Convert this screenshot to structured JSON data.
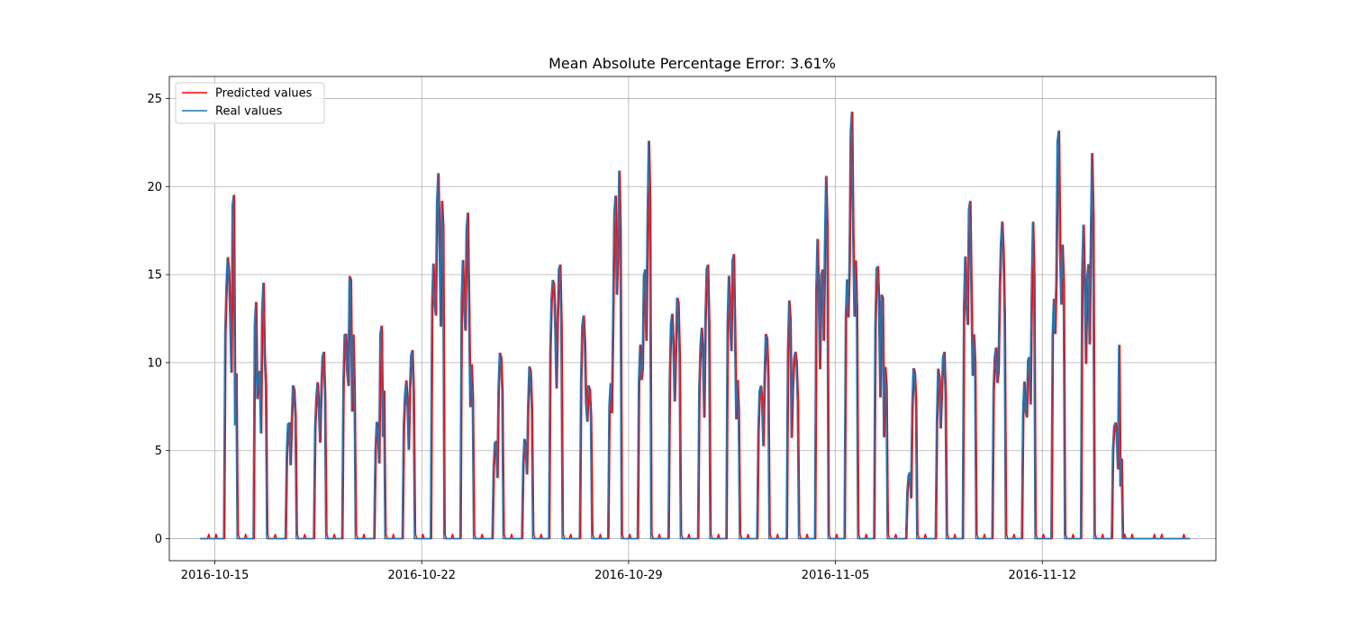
{
  "chart_data": {
    "type": "line",
    "title": "Mean Absolute Percentage Error: 3.61%",
    "xlabel": "",
    "ylabel": "",
    "x_range": [
      "2016-10-14T12:00",
      "2016-11-17T00:00"
    ],
    "xlim": [
      "2016-10-13T11:00",
      "2016-11-17T21:00"
    ],
    "ylim": [
      -1.25,
      26.25
    ],
    "x_ticks": [
      "2016-10-15",
      "2016-10-22",
      "2016-10-29",
      "2016-11-05",
      "2016-11-12"
    ],
    "y_ticks": [
      0,
      5,
      10,
      15,
      20,
      25
    ],
    "grid": true,
    "legend_position": "top-left",
    "real_color": "#1f77b4",
    "predicted_color": "#ff0000",
    "legend": [
      {
        "label": "Predicted values",
        "color": "#ff0000"
      },
      {
        "label": "Real values",
        "color": "#1f77b4"
      }
    ],
    "daily_peaks": [
      {
        "date": "2016-10-15",
        "segments": [
          [
            0.3,
            0.55,
            16
          ],
          [
            0.55,
            0.66,
            21
          ],
          [
            0.66,
            0.74,
            10
          ]
        ]
      },
      {
        "date": "2016-10-16",
        "segments": [
          [
            0.3,
            0.42,
            14
          ],
          [
            0.42,
            0.55,
            10
          ],
          [
            0.55,
            0.68,
            15
          ],
          [
            0.68,
            0.74,
            9
          ]
        ]
      },
      {
        "date": "2016-10-17",
        "segments": [
          [
            0.4,
            0.55,
            7
          ],
          [
            0.55,
            0.74,
            9
          ]
        ]
      },
      {
        "date": "2016-10-18",
        "segments": [
          [
            0.35,
            0.55,
            9
          ],
          [
            0.55,
            0.74,
            11
          ]
        ]
      },
      {
        "date": "2016-10-19",
        "segments": [
          [
            0.3,
            0.5,
            12
          ],
          [
            0.5,
            0.62,
            16
          ],
          [
            0.62,
            0.72,
            12
          ]
        ]
      },
      {
        "date": "2016-10-20",
        "segments": [
          [
            0.4,
            0.55,
            7
          ],
          [
            0.55,
            0.66,
            13
          ],
          [
            0.66,
            0.74,
            9
          ]
        ]
      },
      {
        "date": "2016-10-21",
        "segments": [
          [
            0.35,
            0.55,
            9
          ],
          [
            0.55,
            0.74,
            11
          ]
        ]
      },
      {
        "date": "2016-10-22",
        "segments": [
          [
            0.3,
            0.45,
            16
          ],
          [
            0.45,
            0.62,
            21
          ],
          [
            0.62,
            0.74,
            20
          ]
        ]
      },
      {
        "date": "2016-10-23",
        "segments": [
          [
            0.3,
            0.45,
            16
          ],
          [
            0.45,
            0.6,
            19
          ],
          [
            0.6,
            0.74,
            10
          ]
        ]
      },
      {
        "date": "2016-10-24",
        "segments": [
          [
            0.4,
            0.55,
            6
          ],
          [
            0.55,
            0.74,
            11
          ]
        ]
      },
      {
        "date": "2016-10-25",
        "segments": [
          [
            0.4,
            0.55,
            6
          ],
          [
            0.55,
            0.74,
            10
          ]
        ]
      },
      {
        "date": "2016-10-26",
        "segments": [
          [
            0.3,
            0.55,
            15
          ],
          [
            0.55,
            0.74,
            16
          ]
        ]
      },
      {
        "date": "2016-10-27",
        "segments": [
          [
            0.35,
            0.55,
            13
          ],
          [
            0.55,
            0.74,
            9
          ]
        ]
      },
      {
        "date": "2016-10-28",
        "segments": [
          [
            0.3,
            0.45,
            9
          ],
          [
            0.45,
            0.6,
            20
          ],
          [
            0.6,
            0.74,
            21
          ]
        ]
      },
      {
        "date": "2016-10-29",
        "segments": [
          [
            0.3,
            0.45,
            11
          ],
          [
            0.45,
            0.6,
            16
          ],
          [
            0.6,
            0.74,
            23
          ]
        ]
      },
      {
        "date": "2016-10-30",
        "segments": [
          [
            0.35,
            0.55,
            13
          ],
          [
            0.55,
            0.74,
            14
          ]
        ]
      },
      {
        "date": "2016-10-31",
        "segments": [
          [
            0.35,
            0.55,
            12
          ],
          [
            0.55,
            0.74,
            16
          ]
        ]
      },
      {
        "date": "2016-11-01",
        "segments": [
          [
            0.3,
            0.45,
            15
          ],
          [
            0.45,
            0.6,
            17
          ],
          [
            0.6,
            0.74,
            9
          ]
        ]
      },
      {
        "date": "2016-11-02",
        "segments": [
          [
            0.35,
            0.55,
            9
          ],
          [
            0.55,
            0.74,
            12
          ]
        ]
      },
      {
        "date": "2016-11-03",
        "segments": [
          [
            0.35,
            0.5,
            14
          ],
          [
            0.5,
            0.74,
            11
          ]
        ]
      },
      {
        "date": "2016-11-04",
        "segments": [
          [
            0.3,
            0.45,
            17
          ],
          [
            0.45,
            0.6,
            16
          ],
          [
            0.6,
            0.74,
            21
          ]
        ]
      },
      {
        "date": "2016-11-05",
        "segments": [
          [
            0.3,
            0.45,
            15
          ],
          [
            0.45,
            0.6,
            25
          ],
          [
            0.6,
            0.74,
            16
          ]
        ]
      },
      {
        "date": "2016-11-06",
        "segments": [
          [
            0.3,
            0.5,
            16
          ],
          [
            0.5,
            0.62,
            15
          ],
          [
            0.62,
            0.74,
            10
          ]
        ]
      },
      {
        "date": "2016-11-07",
        "segments": [
          [
            0.4,
            0.55,
            4
          ],
          [
            0.55,
            0.74,
            10
          ]
        ]
      },
      {
        "date": "2016-11-08",
        "segments": [
          [
            0.4,
            0.55,
            10
          ],
          [
            0.55,
            0.74,
            11
          ]
        ]
      },
      {
        "date": "2016-11-09",
        "segments": [
          [
            0.3,
            0.45,
            16
          ],
          [
            0.45,
            0.6,
            20
          ],
          [
            0.6,
            0.74,
            12
          ]
        ]
      },
      {
        "date": "2016-11-10",
        "segments": [
          [
            0.3,
            0.5,
            11
          ],
          [
            0.5,
            0.74,
            18
          ]
        ]
      },
      {
        "date": "2016-11-11",
        "segments": [
          [
            0.3,
            0.45,
            9
          ],
          [
            0.45,
            0.6,
            11
          ],
          [
            0.6,
            0.74,
            18
          ]
        ]
      },
      {
        "date": "2016-11-12",
        "segments": [
          [
            0.3,
            0.45,
            14
          ],
          [
            0.45,
            0.6,
            24
          ],
          [
            0.6,
            0.74,
            17
          ]
        ]
      },
      {
        "date": "2016-11-13",
        "segments": [
          [
            0.3,
            0.45,
            18
          ],
          [
            0.45,
            0.6,
            16
          ],
          [
            0.6,
            0.74,
            22
          ]
        ]
      },
      {
        "date": "2016-11-14",
        "segments": [
          [
            0.35,
            0.55,
            7
          ],
          [
            0.55,
            0.62,
            11
          ],
          [
            0.62,
            0.7,
            5
          ]
        ]
      }
    ],
    "series": [
      {
        "name": "Predicted values",
        "color": "#ff0000",
        "lag_hours": 1
      },
      {
        "name": "Real values",
        "color": "#1f77b4",
        "lag_hours": 0
      }
    ]
  }
}
